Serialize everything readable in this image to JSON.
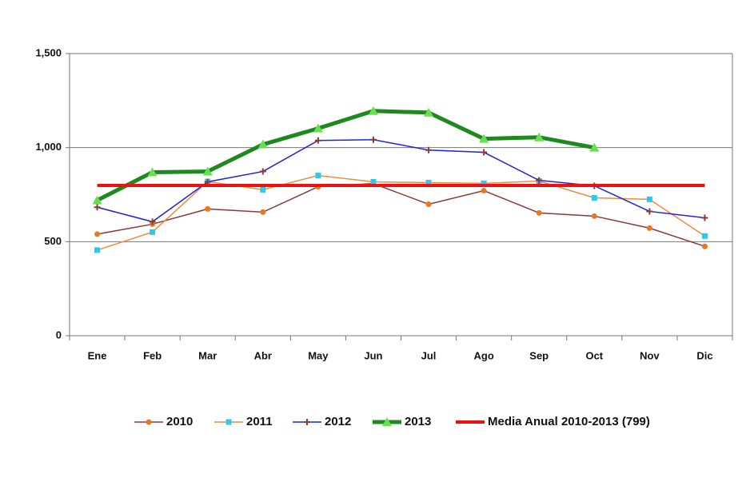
{
  "chart_data": {
    "type": "line",
    "categories": [
      "Ene",
      "Feb",
      "Mar",
      "Abr",
      "May",
      "Jun",
      "Jul",
      "Ago",
      "Sep",
      "Oct",
      "Nov",
      "Dic"
    ],
    "series": [
      {
        "name": "2010",
        "color": "#8b3a3a",
        "marker_color": "#e87722",
        "marker": "circle",
        "values": [
          540,
          593,
          674,
          657,
          792,
          809,
          699,
          771,
          653,
          636,
          572,
          475
        ]
      },
      {
        "name": "2011",
        "color": "#f08a3c",
        "marker_color": "#33c6e8",
        "marker": "square",
        "values": [
          455,
          551,
          820,
          776,
          852,
          818,
          814,
          810,
          822,
          733,
          725,
          530
        ]
      },
      {
        "name": "2012",
        "color": "#2020e0",
        "marker_color": "#8b3a3a",
        "marker": "plus",
        "values": [
          683,
          606,
          818,
          873,
          1038,
          1042,
          987,
          975,
          826,
          797,
          661,
          627
        ]
      },
      {
        "name": "2013",
        "color": "#1e8a1e",
        "marker_color": "#66e050",
        "marker": "triangle",
        "values": [
          720,
          869,
          873,
          1017,
          1102,
          1195,
          1186,
          1047,
          1055,
          1000,
          null,
          null
        ]
      },
      {
        "name": "Media Anual 2010-2013 (799)",
        "color": "#ee1111",
        "marker": "none",
        "values": [
          799,
          799,
          799,
          799,
          799,
          799,
          799,
          799,
          799,
          799,
          799,
          799
        ]
      }
    ],
    "ylim": [
      0,
      1500
    ],
    "yticks": [
      0,
      500,
      {
        "value": 1000,
        "label": "1,000"
      },
      {
        "value": 1500,
        "label": "1,500"
      }
    ],
    "grid": true,
    "legend": "bottom"
  }
}
